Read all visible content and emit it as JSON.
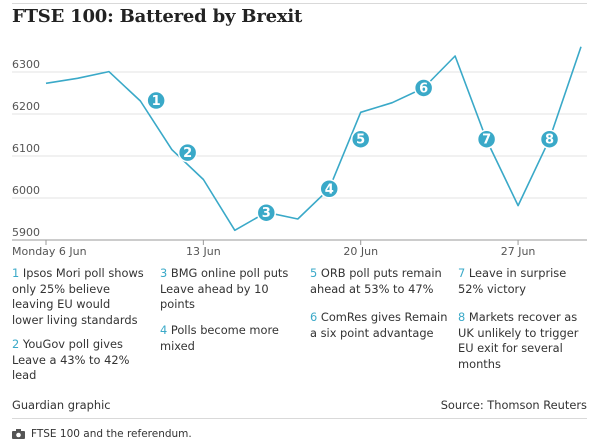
{
  "chart_data": {
    "type": "line",
    "title": "FTSE 100: Battered by Brexit",
    "x": [
      "2016-06-06",
      "2016-06-07",
      "2016-06-08",
      "2016-06-09",
      "2016-06-10",
      "2016-06-13",
      "2016-06-14",
      "2016-06-15",
      "2016-06-16",
      "2016-06-17",
      "2016-06-20",
      "2016-06-21",
      "2016-06-22",
      "2016-06-23",
      "2016-06-24",
      "2016-06-27",
      "2016-06-28",
      "2016-06-29"
    ],
    "xticks": [
      {
        "label": "Monday 6 Jun",
        "index": 0
      },
      {
        "label": "13 Jun",
        "index": 5
      },
      {
        "label": "20 Jun",
        "index": 10
      },
      {
        "label": "27 Jun",
        "index": 15
      }
    ],
    "series": [
      {
        "values": [
          6273,
          6285,
          6301,
          6231,
          6115,
          6044,
          5923,
          5966,
          5950,
          6022,
          6204,
          6227,
          6262,
          6338,
          6138,
          5982,
          6140,
          6360
        ]
      }
    ],
    "ylim": [
      5900,
      6400
    ],
    "yticks": [
      5900,
      6000,
      6100,
      6200,
      6300
    ],
    "grid": "horizontal",
    "color": "#3aa9c8",
    "markers": [
      {
        "label": "1",
        "x": 3.5,
        "value": 6232
      },
      {
        "label": "2",
        "x": 4.5,
        "value": 6108
      },
      {
        "label": "3",
        "x": 7.0,
        "value": 5965
      },
      {
        "label": "4",
        "x": 9.0,
        "value": 6022
      },
      {
        "label": "5",
        "x": 10.0,
        "value": 6140
      },
      {
        "label": "6",
        "x": 12.0,
        "value": 6262
      },
      {
        "label": "7",
        "x": 14.0,
        "value": 6140
      },
      {
        "label": "8",
        "x": 16.0,
        "value": 6140
      }
    ]
  },
  "notes": [
    {
      "num": "1",
      "text": "Ipsos Mori poll shows only 25% believe leaving EU would lower living standards"
    },
    {
      "num": "2",
      "text": "YouGov poll gives Leave a 43% to 42% lead"
    },
    {
      "num": "3",
      "text": "BMG online poll puts Leave ahead by 10 points"
    },
    {
      "num": "4",
      "text": "Polls become more mixed"
    },
    {
      "num": "5",
      "text": "ORB poll puts remain ahead at 53% to 47%"
    },
    {
      "num": "6",
      "text": "ComRes gives Remain a six point advantage"
    },
    {
      "num": "7",
      "text": "Leave in surprise 52% victory"
    },
    {
      "num": "8",
      "text": "Markets recover as UK unlikely to trigger EU exit for several months"
    }
  ],
  "footer": {
    "credit": "Guardian graphic",
    "source": "Source: Thomson Reuters"
  },
  "caption": {
    "icon": "camera-icon",
    "text": "FTSE 100 and the referendum."
  }
}
